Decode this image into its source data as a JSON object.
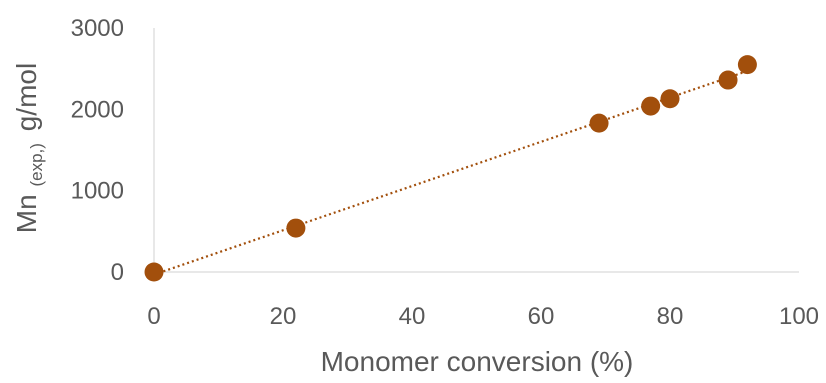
{
  "chart_data": {
    "type": "scatter",
    "xlabel": "Monomer conversion (%)",
    "ylabel_main": "Mn",
    "ylabel_sub": "(exp,)",
    "ylabel_unit": "g/mol",
    "xlim": [
      0,
      100
    ],
    "ylim": [
      0,
      3000
    ],
    "xticks": [
      0,
      20,
      40,
      60,
      80,
      100
    ],
    "yticks": [
      0,
      1000,
      2000,
      3000
    ],
    "grid": false,
    "trendline": "linear",
    "trendline_style": "dotted",
    "series": [
      {
        "x": [
          0,
          22,
          69,
          77,
          80,
          89,
          92
        ],
        "y": [
          0,
          540,
          1830,
          2040,
          2130,
          2360,
          2550
        ]
      }
    ],
    "colors": {
      "marker": "#a24f0c",
      "trendline": "#a24f0c",
      "axis": "#d9d9d9",
      "text": "#595959"
    }
  }
}
